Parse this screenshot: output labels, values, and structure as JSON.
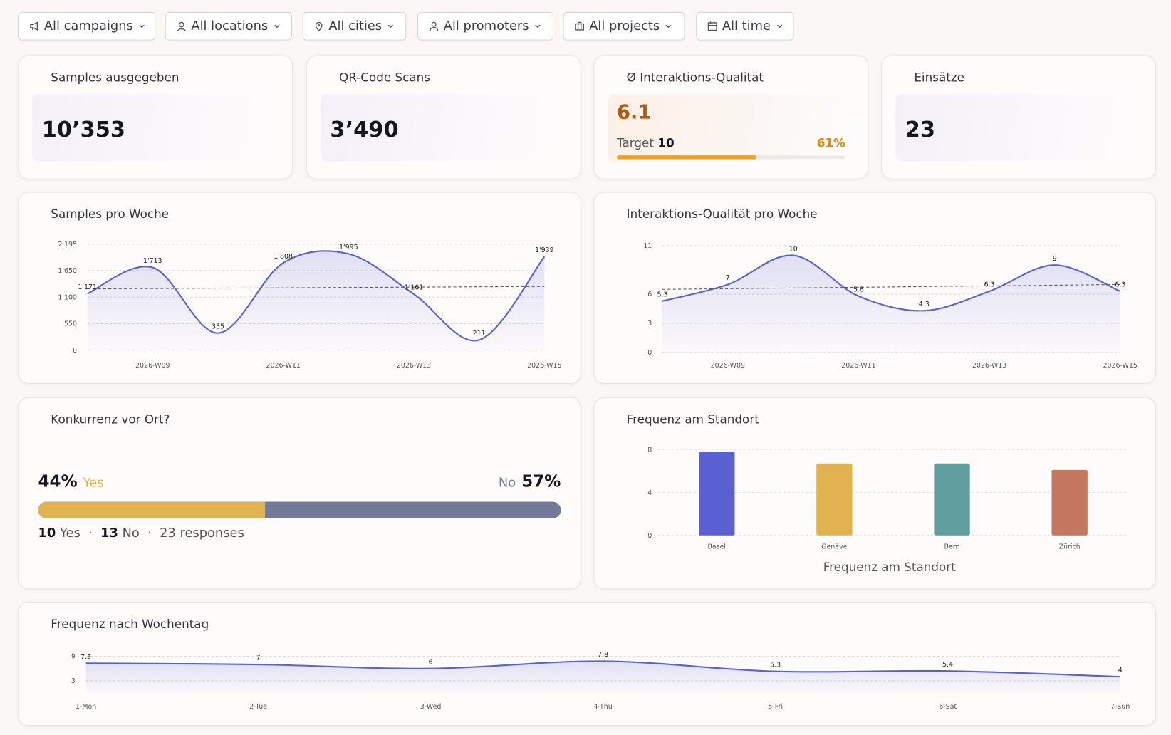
{
  "filters": [
    "All campaigns",
    "All locations",
    "All cities",
    "All promoters",
    "All projects",
    "All time"
  ],
  "kpis": [
    {
      "title": "Samples ausgegeben",
      "value": "10’353"
    },
    {
      "title": "QR-Code Scans",
      "value": "3’490"
    },
    {
      "title": "Ø Interaktions-Qualität",
      "value": 6.1,
      "target_label": "Target",
      "target": 10,
      "percent_label": "61%"
    },
    {
      "title": "Einsätze",
      "value": 23
    }
  ],
  "competition": {
    "title": "Konkurrenz vor Ort?",
    "yes_percent": "44%",
    "yes_label": "Yes",
    "no_label": "No",
    "no_percent": "57%",
    "yes_count": 10,
    "no_count": 13,
    "total": 23,
    "total_label": "responses"
  },
  "chart_data": [
    {
      "type": "line",
      "title": "Samples pro Woche",
      "categories": [
        null,
        "2026-W09",
        null,
        "2026-W11",
        null,
        "2026-W13",
        null,
        "2026-W15"
      ],
      "values": [
        1171,
        1713,
        355,
        1808,
        1995,
        1161,
        211,
        1939
      ],
      "value_labels": [
        "1'171",
        "1'713",
        "355",
        "1'808",
        "1'995",
        "1'161",
        "211",
        "1'939"
      ],
      "color": "#5a5fd1",
      "ylim": [
        0,
        2195
      ],
      "yticks": [
        0,
        550,
        {
          "value": 1100,
          "label": "1'100"
        },
        {
          "value": 1650,
          "label": "1'650"
        },
        {
          "value": 2195,
          "label": "2'195"
        }
      ],
      "trend_line": [
        1270,
        1320
      ],
      "grid": true
    },
    {
      "type": "line",
      "title": "Interaktions-Qualität pro Woche",
      "categories": [
        null,
        "2026-W09",
        null,
        "2026-W11",
        null,
        "2026-W13",
        null,
        "2026-W15"
      ],
      "values": [
        5.3,
        7,
        10,
        5.8,
        4.3,
        6.3,
        9,
        6.3
      ],
      "color": "#5a5fd1",
      "ylim": [
        0,
        11
      ],
      "yticks": [
        0,
        3,
        6,
        11
      ],
      "trend_line": [
        6.5,
        7.0
      ],
      "grid": true
    },
    {
      "type": "bar",
      "title": "Frequenz am Standort",
      "x_label": "Frequenz am Standort",
      "categories": [
        "Basel",
        "Genève",
        "Bern",
        "Zürich"
      ],
      "values": [
        7.8,
        6.7,
        6.7,
        6.1
      ],
      "colors": [
        "#5a5fd1",
        "#e0b350",
        "#5f9fa0",
        "#c4765f"
      ],
      "ylim": [
        0,
        8
      ],
      "yticks": [
        0,
        4,
        8
      ],
      "grid": true
    },
    {
      "type": "line",
      "title": "Frequenz nach Wochentag",
      "categories": [
        "1-Mon",
        "2-Tue",
        "3-Wed",
        "4-Thu",
        "5-Fri",
        "6-Sat",
        "7-Sun"
      ],
      "values": [
        7.3,
        7,
        6,
        7.8,
        5.3,
        5.4,
        4
      ],
      "color": "#5a5fd1",
      "ylim": [
        0,
        9
      ],
      "yticks": [
        3,
        9
      ],
      "grid": true
    }
  ]
}
